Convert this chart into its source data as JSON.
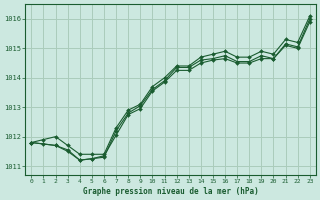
{
  "title": "Graphe pression niveau de la mer (hPa)",
  "background_color": "#cce8e0",
  "grid_color": "#aaccbb",
  "line_color": "#1a5c30",
  "xlim": [
    -0.5,
    23.5
  ],
  "ylim": [
    1010.7,
    1016.5
  ],
  "yticks": [
    1011,
    1012,
    1013,
    1014,
    1015,
    1016
  ],
  "xticks": [
    0,
    1,
    2,
    3,
    4,
    5,
    6,
    7,
    8,
    9,
    10,
    11,
    12,
    13,
    14,
    15,
    16,
    17,
    18,
    19,
    20,
    21,
    22,
    23
  ],
  "series1_x": [
    0,
    1,
    2,
    3,
    4,
    5,
    6,
    7,
    8,
    9,
    10,
    11,
    12,
    13,
    14,
    15,
    16,
    17,
    18,
    19,
    20,
    21,
    22,
    23
  ],
  "series1_y": [
    1011.8,
    1011.9,
    1012.0,
    1011.7,
    1011.4,
    1011.4,
    1011.4,
    1012.3,
    1012.9,
    1013.1,
    1013.7,
    1014.0,
    1014.4,
    1014.4,
    1014.7,
    1014.8,
    1014.9,
    1014.7,
    1014.7,
    1014.9,
    1014.8,
    1015.3,
    1015.2,
    1016.1
  ],
  "series2_x": [
    0,
    2,
    3,
    4,
    5,
    6,
    7,
    8,
    9,
    10,
    11,
    12,
    13,
    14,
    15,
    16,
    17,
    18,
    19,
    20,
    21,
    22,
    23
  ],
  "series2_y": [
    1011.8,
    1011.7,
    1011.5,
    1011.2,
    1011.25,
    1011.3,
    1012.2,
    1012.8,
    1013.05,
    1013.6,
    1013.9,
    1014.35,
    1014.35,
    1014.6,
    1014.65,
    1014.75,
    1014.55,
    1014.55,
    1014.75,
    1014.65,
    1015.15,
    1015.05,
    1016.0
  ],
  "series3_x": [
    0,
    1,
    2,
    3,
    4,
    5,
    6,
    7,
    8,
    9,
    10,
    11,
    12,
    13,
    14,
    15,
    16,
    17,
    18,
    19,
    20,
    21,
    22,
    23
  ],
  "series3_y": [
    1011.8,
    1011.75,
    1011.7,
    1011.55,
    1011.2,
    1011.25,
    1011.35,
    1012.05,
    1012.75,
    1012.95,
    1013.55,
    1013.85,
    1014.25,
    1014.25,
    1014.5,
    1014.6,
    1014.65,
    1014.5,
    1014.5,
    1014.65,
    1014.65,
    1015.1,
    1015.0,
    1015.9
  ]
}
